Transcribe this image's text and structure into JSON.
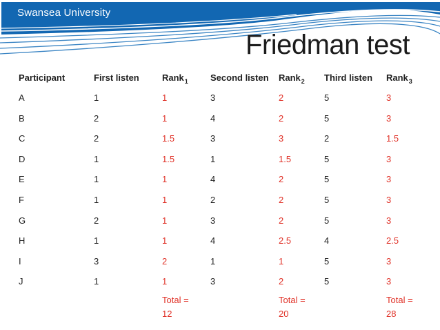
{
  "banner": {
    "brand": "Swansea University"
  },
  "title": "Friedman test",
  "colors": {
    "banner_blue": "#1267b2",
    "wave_line_blue": "#3b85c4",
    "rank_red": "#e03127",
    "text": "#1f1f1f"
  },
  "table": {
    "columns": [
      {
        "label": "Participant",
        "sub": "",
        "red": false
      },
      {
        "label": "First listen",
        "sub": "",
        "red": false
      },
      {
        "label": "Rank",
        "sub": "1",
        "red": true
      },
      {
        "label": "Second listen",
        "sub": "",
        "red": false
      },
      {
        "label": "Rank",
        "sub": "2",
        "red": true
      },
      {
        "label": "Third listen",
        "sub": "",
        "red": false
      },
      {
        "label": "Rank",
        "sub": "3",
        "red": true
      }
    ],
    "rows": [
      {
        "cells": [
          "A",
          "1",
          "1",
          "3",
          "2",
          "5",
          "3"
        ]
      },
      {
        "cells": [
          "B",
          "2",
          "1",
          "4",
          "2",
          "5",
          "3"
        ]
      },
      {
        "cells": [
          "C",
          "2",
          "1.5",
          "3",
          "3",
          "2",
          "1.5"
        ]
      },
      {
        "cells": [
          "D",
          "1",
          "1.5",
          "1",
          "1.5",
          "5",
          "3"
        ]
      },
      {
        "cells": [
          "E",
          "1",
          "1",
          "4",
          "2",
          "5",
          "3"
        ]
      },
      {
        "cells": [
          "F",
          "1",
          "1",
          "2",
          "2",
          "5",
          "3"
        ]
      },
      {
        "cells": [
          "G",
          "2",
          "1",
          "3",
          "2",
          "5",
          "3"
        ]
      },
      {
        "cells": [
          "H",
          "1",
          "1",
          "4",
          "2.5",
          "4",
          "2.5"
        ]
      },
      {
        "cells": [
          "I",
          "3",
          "2",
          "1",
          "1",
          "5",
          "3"
        ]
      },
      {
        "cells": [
          "J",
          "1",
          "1",
          "3",
          "2",
          "5",
          "3"
        ]
      }
    ],
    "totals": {
      "label": "Total =",
      "values": [
        "12",
        "20",
        "28"
      ],
      "columns": [
        2,
        4,
        6
      ]
    }
  }
}
